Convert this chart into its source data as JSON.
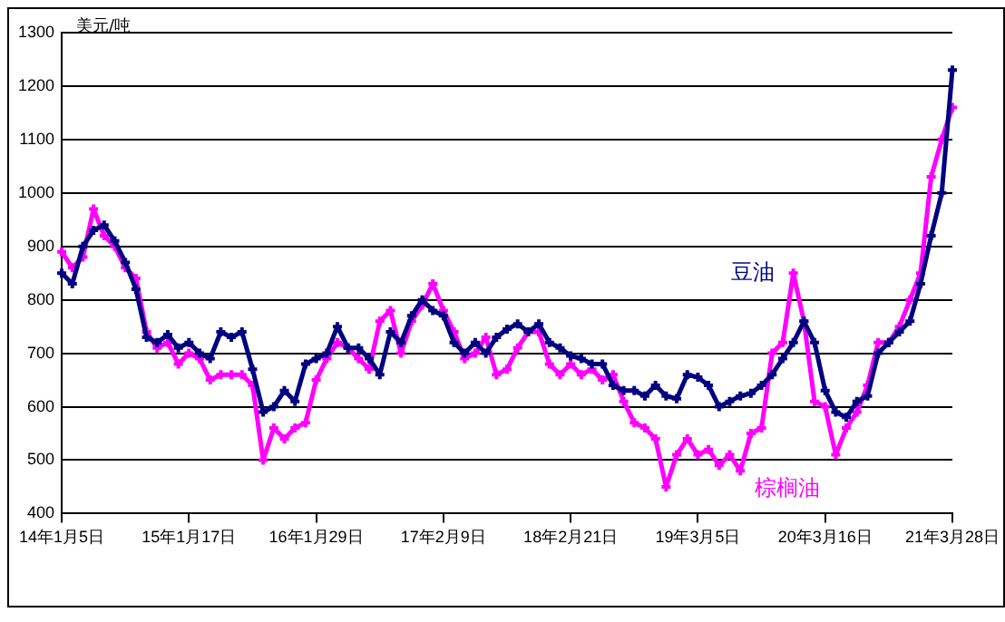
{
  "chart_data": {
    "type": "line",
    "ylabel": "美元/吨",
    "categories": [
      "14年1月5日",
      null,
      null,
      null,
      null,
      null,
      null,
      null,
      null,
      null,
      null,
      null,
      "15年1月17日",
      null,
      null,
      null,
      null,
      null,
      null,
      null,
      null,
      null,
      null,
      null,
      "16年1月29日",
      null,
      null,
      null,
      null,
      null,
      null,
      null,
      null,
      null,
      null,
      null,
      "17年2月9日",
      null,
      null,
      null,
      null,
      null,
      null,
      null,
      null,
      null,
      null,
      null,
      "18年2月21日",
      null,
      null,
      null,
      null,
      null,
      null,
      null,
      null,
      null,
      null,
      null,
      "19年3月5日",
      null,
      null,
      null,
      null,
      null,
      null,
      null,
      null,
      null,
      null,
      null,
      "20年3月16日",
      null,
      null,
      null,
      null,
      null,
      null,
      null,
      null,
      null,
      null,
      null,
      "21年3月28日"
    ],
    "series": [
      {
        "name": "豆油",
        "color": "#000080",
        "values": [
          850,
          830,
          900,
          930,
          940,
          910,
          870,
          820,
          730,
          720,
          735,
          710,
          720,
          700,
          690,
          740,
          730,
          740,
          670,
          590,
          600,
          630,
          610,
          680,
          690,
          700,
          750,
          710,
          710,
          690,
          660,
          740,
          720,
          770,
          800,
          780,
          770,
          720,
          700,
          720,
          700,
          730,
          745,
          755,
          740,
          755,
          720,
          710,
          695,
          690,
          680,
          680,
          640,
          630,
          630,
          620,
          640,
          620,
          615,
          660,
          655,
          640,
          600,
          610,
          620,
          625,
          640,
          660,
          690,
          720,
          760,
          720,
          630,
          590,
          580,
          610,
          620,
          700,
          720,
          740,
          760,
          830,
          920,
          1000,
          1230
        ]
      },
      {
        "name": "棕榈油",
        "color": "#ff00ff",
        "values": [
          890,
          860,
          880,
          970,
          920,
          900,
          860,
          840,
          740,
          710,
          720,
          680,
          700,
          690,
          650,
          660,
          660,
          660,
          640,
          500,
          560,
          540,
          560,
          570,
          650,
          690,
          720,
          710,
          690,
          670,
          760,
          780,
          700,
          760,
          790,
          830,
          780,
          740,
          690,
          700,
          730,
          660,
          670,
          710,
          740,
          740,
          680,
          660,
          680,
          660,
          670,
          650,
          660,
          610,
          570,
          560,
          540,
          450,
          510,
          540,
          510,
          520,
          490,
          510,
          480,
          550,
          560,
          700,
          720,
          850,
          760,
          610,
          600,
          510,
          560,
          590,
          640,
          720,
          720,
          750,
          800,
          850,
          1030,
          1100,
          1160
        ]
      }
    ],
    "ylim": [
      400,
      1300
    ],
    "yticks": [
      400,
      500,
      600,
      700,
      800,
      900,
      1000,
      1100,
      1200,
      1300
    ],
    "grid": "y",
    "legend": false,
    "marker": "cross",
    "line_style": "solid"
  }
}
